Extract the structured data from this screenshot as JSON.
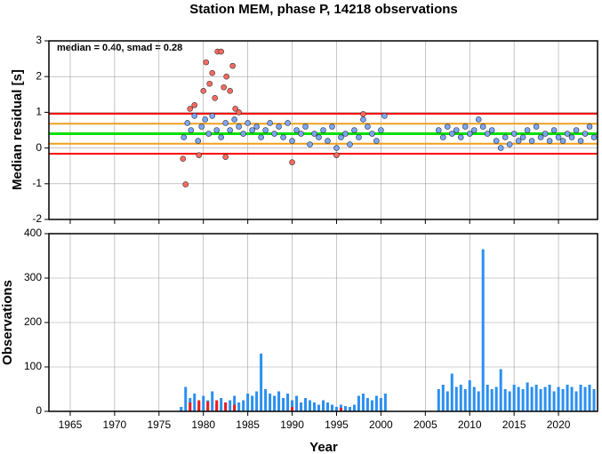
{
  "chart_data": [
    {
      "type": "scatter",
      "title": "Station MEM, phase P, 14218 observations",
      "ylabel": "Median residual [s]",
      "annotation": "median = 0.40, smad = 0.28",
      "xlim": [
        1962.6,
        2024.4
      ],
      "ylim": [
        -2,
        3
      ],
      "yticks": [
        -2,
        -1,
        0,
        1,
        2,
        3
      ],
      "grid": true,
      "hlines": [
        {
          "value": 0.96,
          "color": "#ff0000"
        },
        {
          "value": 0.68,
          "color": "#f0a020"
        },
        {
          "value": 0.4,
          "color": "#00e000"
        },
        {
          "value": 0.12,
          "color": "#f0a020"
        },
        {
          "value": -0.16,
          "color": "#ff0000"
        }
      ],
      "series": [
        {
          "color": "#7aa6f5",
          "x": [
            1977.8,
            1978.2,
            1978.6,
            1979.0,
            1979.4,
            1979.8,
            1980.2,
            1980.6,
            1981.0,
            1981.5,
            1982.0,
            1982.5,
            1983.0,
            1983.5,
            1984.0,
            1984.5,
            1985.0,
            1985.5,
            1986.0,
            1986.5,
            1987.0,
            1987.5,
            1988.0,
            1988.5,
            1989.0,
            1989.5,
            1990.0,
            1990.5,
            1991.0,
            1991.5,
            1992.0,
            1992.5,
            1993.0,
            1993.5,
            1994.0,
            1994.5,
            1995.0,
            1995.5,
            1996.0,
            1996.5,
            1997.0,
            1997.5,
            1998.0,
            1998.5,
            1999.0,
            1999.5,
            2000.0,
            2000.4,
            2006.5,
            2007.0,
            2007.5,
            2008.0,
            2008.5,
            2009.0,
            2009.5,
            2010.0,
            2010.5,
            2011.0,
            2011.5,
            2012.0,
            2012.5,
            2013.0,
            2013.5,
            2014.0,
            2014.5,
            2015.0,
            2015.5,
            2016.0,
            2016.5,
            2017.0,
            2017.5,
            2018.0,
            2018.5,
            2019.0,
            2019.5,
            2020.0,
            2020.5,
            2021.0,
            2021.5,
            2022.0,
            2022.5,
            2023.0,
            2023.5,
            2024.0
          ],
          "values": [
            0.3,
            0.7,
            0.5,
            0.9,
            0.2,
            0.6,
            0.8,
            0.4,
            0.9,
            0.5,
            0.3,
            0.7,
            0.5,
            0.8,
            0.6,
            0.4,
            0.7,
            0.5,
            0.6,
            0.3,
            0.5,
            0.7,
            0.4,
            0.6,
            0.3,
            0.7,
            0.2,
            0.5,
            0.4,
            0.6,
            0.1,
            0.4,
            0.3,
            0.5,
            0.2,
            0.6,
            0.0,
            0.3,
            0.4,
            0.1,
            0.5,
            0.3,
            0.8,
            0.6,
            0.4,
            0.2,
            0.5,
            0.9,
            0.5,
            0.3,
            0.6,
            0.4,
            0.5,
            0.3,
            0.6,
            0.4,
            0.5,
            0.8,
            0.6,
            0.4,
            0.5,
            0.2,
            0.0,
            0.3,
            0.1,
            0.4,
            0.2,
            0.3,
            0.5,
            0.2,
            0.6,
            0.3,
            0.4,
            0.2,
            0.5,
            0.3,
            0.2,
            0.4,
            0.3,
            0.5,
            0.2,
            0.4,
            0.6,
            0.3
          ]
        },
        {
          "color": "#ff6a60",
          "x": [
            1977.7,
            1978.0,
            1978.5,
            1979.0,
            1979.5,
            1980.0,
            1980.3,
            1980.7,
            1981.0,
            1981.3,
            1981.6,
            1982.0,
            1982.3,
            1982.6,
            1983.0,
            1983.3,
            1983.6,
            1984.0,
            1982.5,
            1990.0,
            1995.0,
            1998.0
          ],
          "values": [
            -0.3,
            -1.02,
            1.1,
            1.2,
            -0.2,
            1.6,
            2.4,
            1.8,
            2.1,
            1.4,
            2.7,
            2.7,
            1.7,
            2.0,
            1.6,
            2.3,
            1.1,
            1.0,
            -0.25,
            -0.4,
            -0.2,
            0.95
          ]
        }
      ]
    },
    {
      "type": "bar",
      "xlabel": "Year",
      "ylabel": "Observations",
      "xlim": [
        1962.6,
        2024.4
      ],
      "ylim": [
        0,
        400
      ],
      "yticks": [
        0,
        100,
        200,
        300,
        400
      ],
      "xticks": [
        1965,
        1970,
        1975,
        1980,
        1985,
        1990,
        1995,
        2000,
        2005,
        2010,
        2015,
        2020
      ],
      "grid": true,
      "series": [
        {
          "color": "#2b8ff0",
          "x": [
            1977.5,
            1978.0,
            1978.5,
            1979.0,
            1979.5,
            1980.0,
            1980.5,
            1981.0,
            1981.5,
            1982.0,
            1982.5,
            1983.0,
            1983.5,
            1984.0,
            1984.5,
            1985.0,
            1985.5,
            1986.0,
            1986.5,
            1987.0,
            1987.5,
            1988.0,
            1988.5,
            1989.0,
            1989.5,
            1990.0,
            1990.5,
            1991.0,
            1991.5,
            1992.0,
            1992.5,
            1993.0,
            1993.5,
            1994.0,
            1994.5,
            1995.0,
            1995.5,
            1996.0,
            1996.5,
            1997.0,
            1997.5,
            1998.0,
            1998.5,
            1999.0,
            1999.5,
            2000.0,
            2000.5,
            2006.5,
            2007.0,
            2007.5,
            2008.0,
            2008.5,
            2009.0,
            2009.5,
            2010.0,
            2010.5,
            2011.0,
            2011.5,
            2012.0,
            2012.5,
            2013.0,
            2013.5,
            2014.0,
            2014.5,
            2015.0,
            2015.5,
            2016.0,
            2016.5,
            2017.0,
            2017.5,
            2018.0,
            2018.5,
            2019.0,
            2019.5,
            2020.0,
            2020.5,
            2021.0,
            2021.5,
            2022.0,
            2022.5,
            2023.0,
            2023.5,
            2024.0
          ],
          "values": [
            10,
            55,
            30,
            40,
            20,
            35,
            25,
            45,
            15,
            30,
            20,
            25,
            35,
            20,
            25,
            40,
            35,
            45,
            130,
            50,
            40,
            35,
            45,
            30,
            40,
            25,
            35,
            20,
            30,
            25,
            20,
            15,
            25,
            20,
            15,
            10,
            15,
            12,
            10,
            15,
            35,
            40,
            30,
            25,
            35,
            30,
            40,
            50,
            60,
            45,
            85,
            55,
            60,
            50,
            70,
            55,
            45,
            365,
            60,
            50,
            55,
            95,
            50,
            45,
            60,
            55,
            50,
            65,
            55,
            60,
            50,
            55,
            60,
            45,
            55,
            50,
            60,
            55,
            45,
            60,
            55,
            60,
            50
          ]
        },
        {
          "color": "#ee1c1c",
          "x": [
            1978.5,
            1979.5,
            1980.5,
            1981.5,
            1982.5,
            1983.5,
            1990.0,
            1995.5
          ],
          "values": [
            20,
            25,
            22,
            25,
            20,
            15,
            10,
            8
          ]
        }
      ]
    }
  ]
}
